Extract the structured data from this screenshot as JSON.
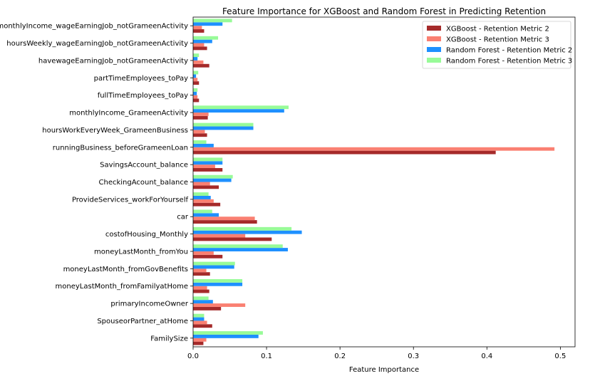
{
  "chart_data": {
    "type": "bar",
    "orientation": "horizontal",
    "title": "Feature Importance for XGBoost and Random Forest in Predicting Retention",
    "xlabel": "Feature Importance",
    "ylabel": "",
    "xlim": [
      0,
      0.52
    ],
    "xticks": [
      "0.0",
      "0.1",
      "0.2",
      "0.3",
      "0.4",
      "0.5"
    ],
    "grid": false,
    "legend_position": "top-right",
    "categories": [
      "FamilySize",
      "SpouseorPartner_atHome",
      "primaryIncomeOwner",
      "moneyLastMonth_fromFamilyatHome",
      "moneyLastMonth_fromGovBenefits",
      "moneyLastMonth_fromYou",
      "costofHousing_Monthly",
      "car",
      "ProvideServices_workForYourself",
      "CheckingAcount_balance",
      "SavingsAccount_balance",
      "runningBusiness_beforeGrameenLoan",
      "hoursWorkEveryWeek_GrameenBusiness",
      "monthlyIncome_GrameenActivity",
      "fullTimeEmployees_toPay",
      "partTimeEmployees_toPay",
      "havewageEarningJob_notGrameenActivity",
      "hoursWeekly_wageEarningJob_notGrameenActivity",
      "monthlyIncome_wageEarningJob_notGrameenActivity"
    ],
    "series": [
      {
        "name": "XGBoost - Retention Metric 2",
        "color": "#a52a2a",
        "values": [
          0.014,
          0.026,
          0.038,
          0.022,
          0.023,
          0.04,
          0.107,
          0.087,
          0.037,
          0.035,
          0.04,
          0.412,
          0.019,
          0.02,
          0.008,
          0.008,
          0.022,
          0.019,
          0.015
        ]
      },
      {
        "name": "XGBoost - Retention Metric 3",
        "color": "#fa8072",
        "values": [
          0.018,
          0.019,
          0.071,
          0.019,
          0.018,
          0.028,
          0.071,
          0.084,
          0.028,
          0.023,
          0.03,
          0.492,
          0.016,
          0.021,
          0.006,
          0.006,
          0.014,
          0.015,
          0.012
        ]
      },
      {
        "name": "Random Forest - Retention Metric 2",
        "color": "#1e90ff",
        "values": [
          0.089,
          0.015,
          0.027,
          0.067,
          0.056,
          0.129,
          0.148,
          0.035,
          0.024,
          0.052,
          0.04,
          0.028,
          0.082,
          0.124,
          0.005,
          0.004,
          0.006,
          0.026,
          0.04
        ]
      },
      {
        "name": "Random Forest - Retention Metric 3",
        "color": "#98fb98",
        "values": [
          0.095,
          0.015,
          0.021,
          0.067,
          0.057,
          0.122,
          0.134,
          0.026,
          0.021,
          0.054,
          0.04,
          0.018,
          0.082,
          0.13,
          0.006,
          0.007,
          0.008,
          0.034,
          0.053
        ]
      }
    ]
  }
}
